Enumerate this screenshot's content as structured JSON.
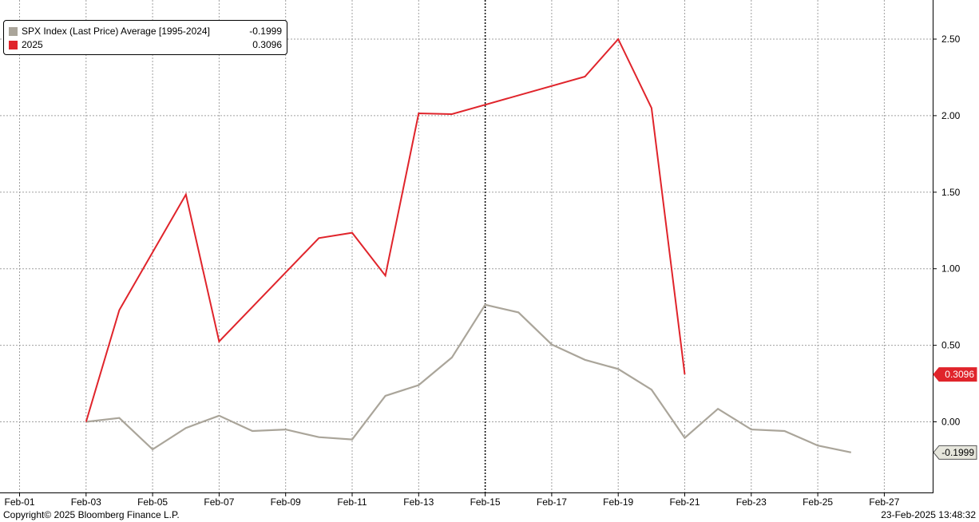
{
  "colors": {
    "avg": "#aaa59a",
    "y2025": "#e0242b",
    "grid": "#a0a0a0"
  },
  "legend": {
    "items": [
      {
        "name": "SPX Index (Last Price) Average [1995-2024]",
        "value": "-0.1999",
        "color": "#aaa59a"
      },
      {
        "name": "2025",
        "value": "0.3096",
        "color": "#e0242b"
      }
    ]
  },
  "footer": {
    "copyright": "Copyright© 2025 Bloomberg Finance L.P.",
    "timestamp": "23-Feb-2025 13:48:32"
  },
  "chart_data": {
    "type": "line",
    "x_ticks": [
      "Feb-01",
      "Feb-03",
      "Feb-05",
      "Feb-07",
      "Feb-09",
      "Feb-11",
      "Feb-13",
      "Feb-15",
      "Feb-17",
      "Feb-19",
      "Feb-21",
      "Feb-23",
      "Feb-25",
      "Feb-27"
    ],
    "y_ticks": [
      "0.00",
      "0.50",
      "1.00",
      "1.50",
      "2.00",
      "2.50"
    ],
    "ylim": [
      -0.3,
      2.75
    ],
    "xlim": [
      "Feb-01",
      "Feb-28"
    ],
    "grid": true,
    "legend_position": "top-left",
    "vertical_marker": "Feb-15",
    "series": [
      {
        "name": "SPX Index (Last Price) Average [1995-2024]",
        "last_value_label": "-0.1999",
        "color": "#aaa59a",
        "points": [
          [
            "Feb-03",
            0.0
          ],
          [
            "Feb-04",
            0.025
          ],
          [
            "Feb-05",
            -0.18
          ],
          [
            "Feb-06",
            -0.04
          ],
          [
            "Feb-07",
            0.04
          ],
          [
            "Feb-08",
            -0.06
          ],
          [
            "Feb-09",
            -0.05
          ],
          [
            "Feb-10",
            -0.1
          ],
          [
            "Feb-11",
            -0.115
          ],
          [
            "Feb-12",
            0.17
          ],
          [
            "Feb-13",
            0.24
          ],
          [
            "Feb-14",
            0.42
          ],
          [
            "Feb-15",
            0.765
          ],
          [
            "Feb-16",
            0.715
          ],
          [
            "Feb-17",
            0.505
          ],
          [
            "Feb-18",
            0.405
          ],
          [
            "Feb-19",
            0.345
          ],
          [
            "Feb-20",
            0.21
          ],
          [
            "Feb-21",
            -0.105
          ],
          [
            "Feb-22",
            0.085
          ],
          [
            "Feb-23",
            -0.05
          ],
          [
            "Feb-24",
            -0.06
          ],
          [
            "Feb-25",
            -0.155
          ],
          [
            "Feb-26",
            -0.1999
          ]
        ]
      },
      {
        "name": "2025",
        "last_value_label": "0.3096",
        "color": "#e0242b",
        "points": [
          [
            "Feb-03",
            0.0
          ],
          [
            "Feb-04",
            0.73
          ],
          [
            "Feb-06",
            1.485
          ],
          [
            "Feb-07",
            0.525
          ],
          [
            "Feb-10",
            1.2
          ],
          [
            "Feb-11",
            1.235
          ],
          [
            "Feb-12",
            0.955
          ],
          [
            "Feb-13",
            2.015
          ],
          [
            "Feb-14",
            2.01
          ],
          [
            "Feb-18",
            2.255
          ],
          [
            "Feb-19",
            2.5
          ],
          [
            "Feb-20",
            2.05
          ],
          [
            "Feb-21",
            0.3096
          ]
        ]
      }
    ]
  }
}
